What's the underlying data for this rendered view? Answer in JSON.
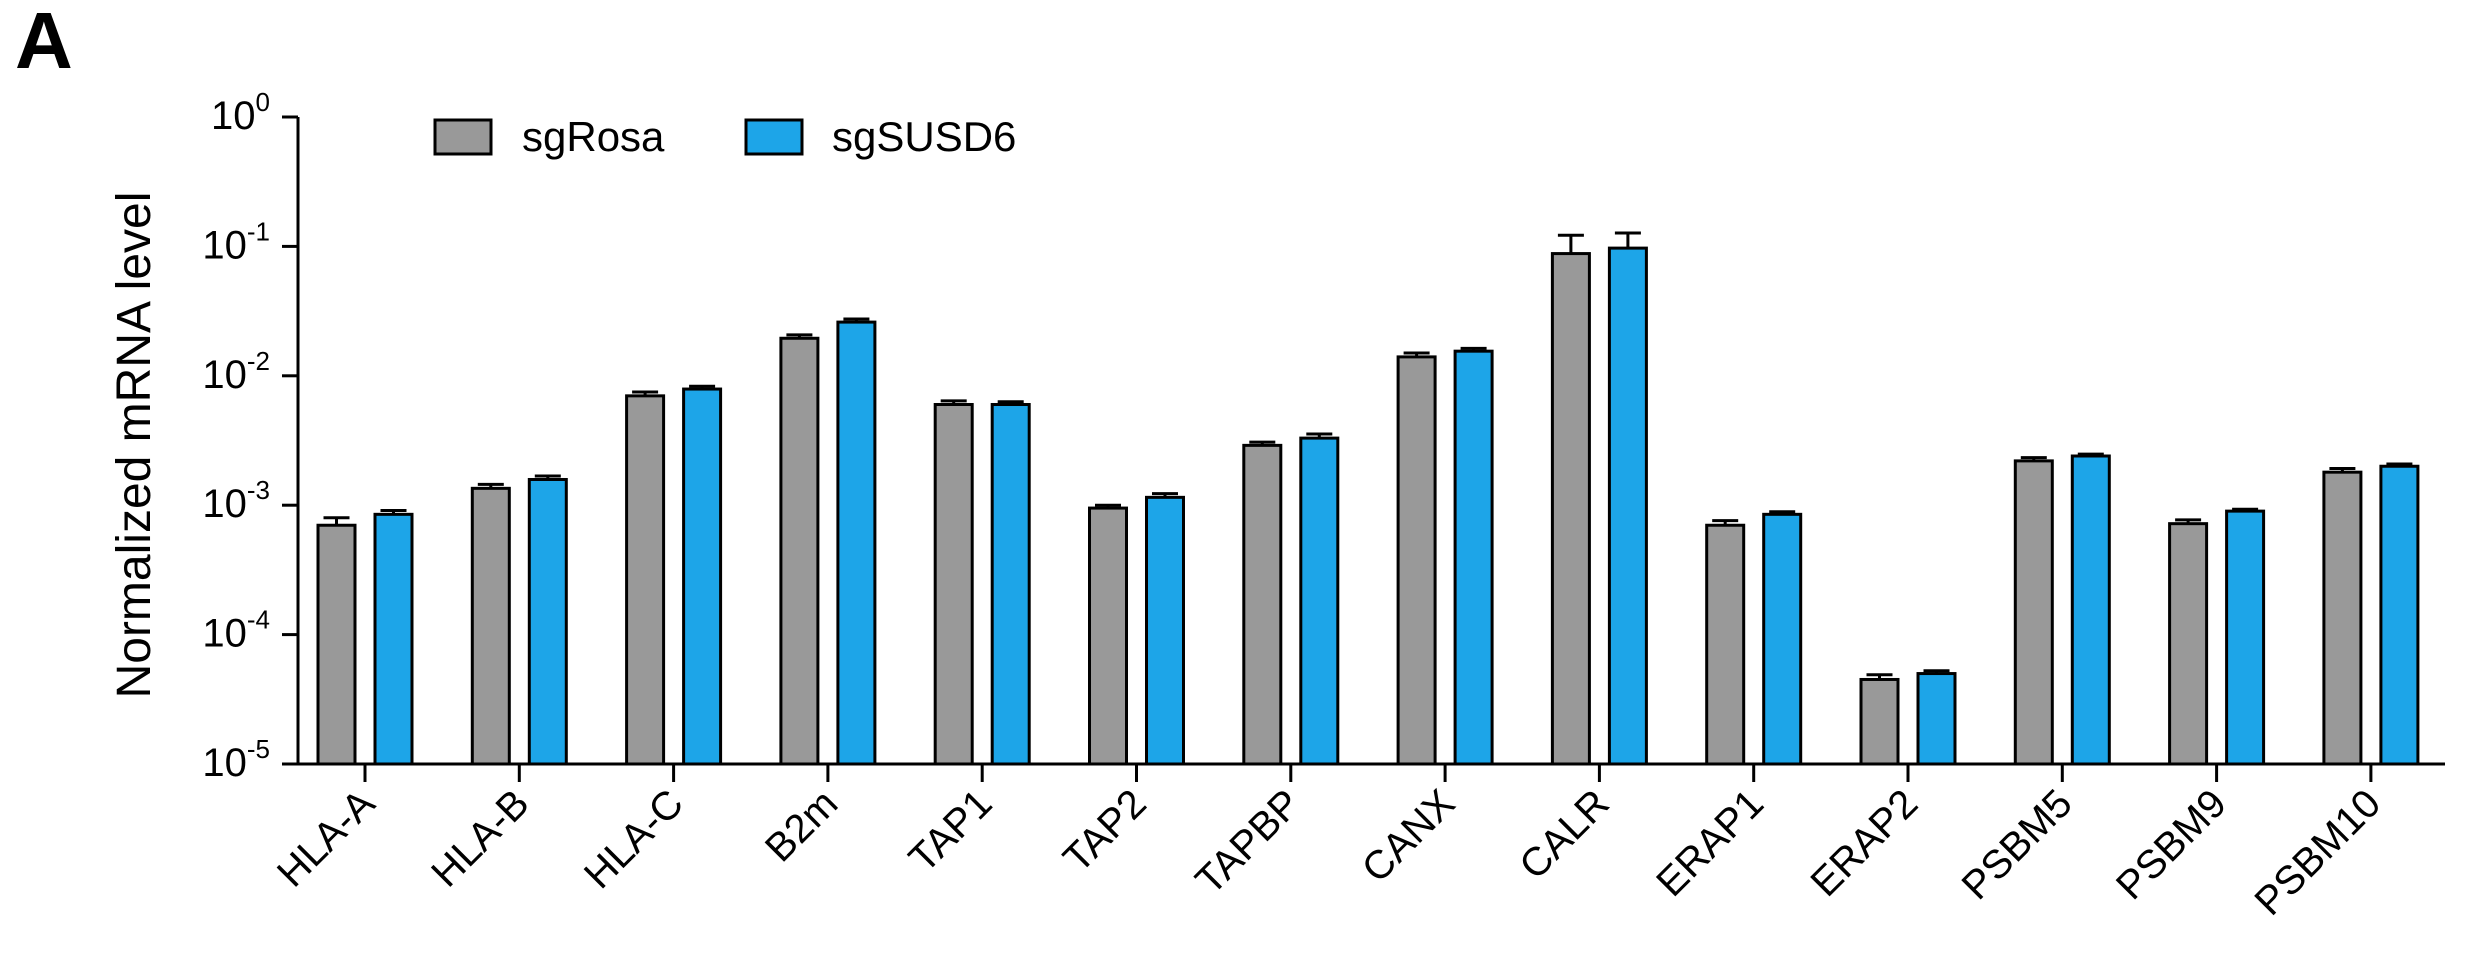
{
  "figure": {
    "panel_label": "A"
  },
  "chart_data": {
    "type": "bar",
    "title": "",
    "xlabel": "",
    "ylabel": "Normalized mRNA level",
    "yscale": "log",
    "ylim": [
      1e-05,
      1
    ],
    "yticks": [
      {
        "base": "10",
        "exp": "0",
        "value": 1
      },
      {
        "base": "10",
        "exp": "-1",
        "value": 0.1
      },
      {
        "base": "10",
        "exp": "-2",
        "value": 0.01
      },
      {
        "base": "10",
        "exp": "-3",
        "value": 0.001
      },
      {
        "base": "10",
        "exp": "-4",
        "value": 0.0001
      },
      {
        "base": "10",
        "exp": "-5",
        "value": 1e-05
      }
    ],
    "legend_position": "top-left",
    "grid": false,
    "categories": [
      "HLA-A",
      "HLA-B",
      "HLA-C",
      "B2m",
      "TAP1",
      "TAP2",
      "TAPBP",
      "CANX",
      "CALR",
      "ERAP1",
      "ERAP2",
      "PSBM5",
      "PSBM9",
      "PSBM10"
    ],
    "series": [
      {
        "name": "sgRosa",
        "color": "#999999",
        "values": [
          0.0007,
          0.00135,
          0.007,
          0.0195,
          0.006,
          0.00095,
          0.0029,
          0.014,
          0.088,
          0.0007,
          4.5e-05,
          0.0022,
          0.00072,
          0.0018
        ],
        "errors": [
          0.0001,
          0.0001,
          0.0005,
          0.0012,
          0.0004,
          5e-05,
          0.00017,
          0.001,
          0.034,
          6e-05,
          4e-06,
          0.00013,
          5e-05,
          0.00012
        ]
      },
      {
        "name": "sgSUSD6",
        "color": "#1da5e8",
        "values": [
          0.00085,
          0.00158,
          0.0079,
          0.026,
          0.006,
          0.00115,
          0.0033,
          0.0155,
          0.097,
          0.00085,
          5e-05,
          0.0024,
          0.0009,
          0.002
        ],
        "errors": [
          6e-05,
          0.0001,
          0.0004,
          0.0015,
          0.0003,
          8e-05,
          0.00025,
          0.0008,
          0.03,
          4e-05,
          2.5e-06,
          8e-05,
          3e-05,
          8e-05
        ]
      }
    ]
  }
}
